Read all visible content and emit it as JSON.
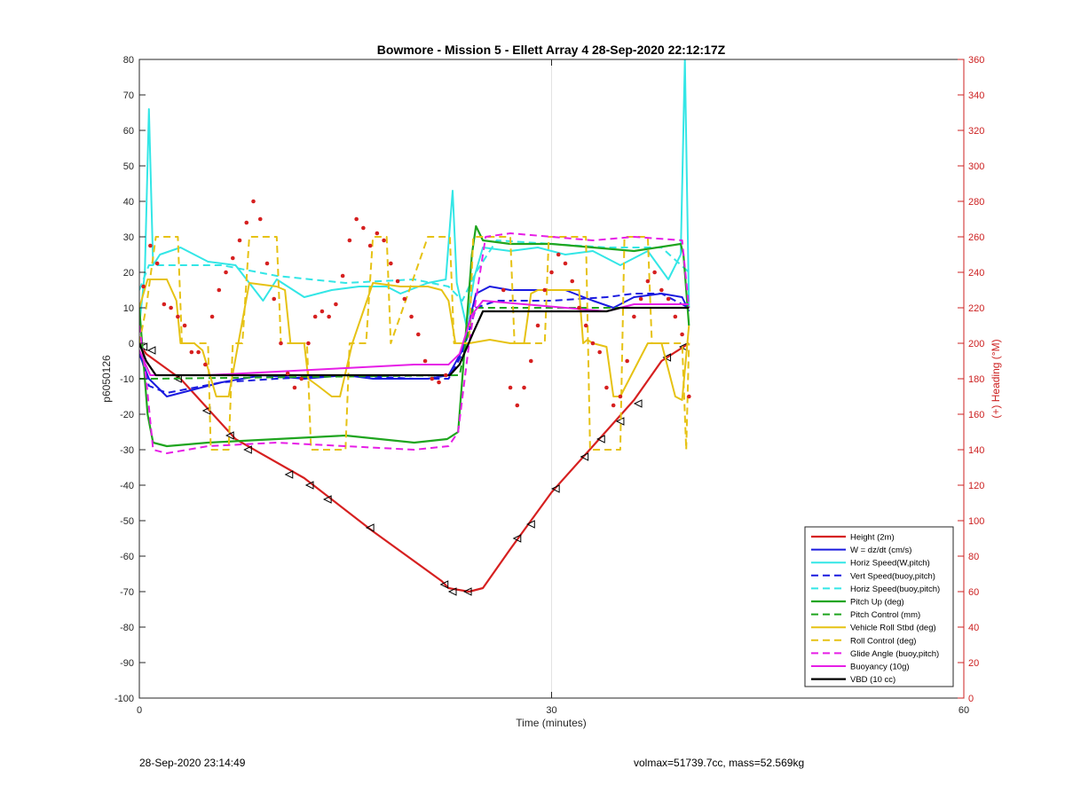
{
  "footer": {
    "timestamp": "28-Sep-2020 23:14:49",
    "vehicle_info": "volmax=51739.7cc, mass=52.569kg"
  },
  "chart_data": {
    "type": "line",
    "title": "Bowmore - Mission 5 - Ellett Array 4 28-Sep-2020 22:12:17Z",
    "xlabel": "Time (minutes)",
    "ylabel": "p6050126",
    "y2label": "(+) Heading (°M)",
    "xlim": [
      0,
      60
    ],
    "ylim": [
      -100,
      80
    ],
    "y2lim": [
      0,
      360
    ],
    "xticks": [
      0,
      30,
      60
    ],
    "yticks": [
      -100,
      -90,
      -80,
      -70,
      -60,
      -50,
      -40,
      -30,
      -20,
      -10,
      0,
      10,
      20,
      30,
      40,
      50,
      60,
      70,
      80
    ],
    "y2ticks": [
      0,
      20,
      40,
      60,
      80,
      100,
      120,
      140,
      160,
      180,
      200,
      220,
      240,
      260,
      280,
      300,
      320,
      340,
      360
    ],
    "grid": "x-only",
    "legend_position": "bottom-right",
    "colors": {
      "red": "#d62020",
      "blue": "#1a1adf",
      "cyan": "#33e6e6",
      "green": "#1fa51f",
      "yellow": "#e6c214",
      "magenta": "#e61ee6",
      "black": "#000000",
      "axis_right": "#cc2020"
    },
    "series": [
      {
        "name": "Height (2m)",
        "color": "#d62020",
        "style": "solid",
        "width": 2.2,
        "x": [
          0,
          0.5,
          3,
          7,
          12,
          17,
          22,
          22.5,
          24,
          25,
          27,
          30,
          33,
          36,
          38,
          40
        ],
        "y": [
          0,
          -3,
          -10,
          -27,
          -38,
          -53,
          -67,
          -69,
          -70,
          -69,
          -58,
          -42,
          -29,
          -16,
          -5,
          0
        ],
        "markers_x": [
          0.3,
          0.9,
          2.8,
          4.9,
          6.6,
          7.9,
          10.9,
          12.4,
          13.7,
          16.8,
          22.2,
          22.8,
          23.9,
          27.5,
          28.5,
          30.3,
          32.4,
          33.6,
          35,
          36.3,
          38.4,
          39.6
        ],
        "markers_y": [
          -1,
          -2,
          -10,
          -19,
          -26,
          -30,
          -37,
          -40,
          -44,
          -52,
          -68,
          -70,
          -70,
          -55,
          -51,
          -41,
          -32,
          -27,
          -22,
          -17,
          -4,
          -1
        ]
      },
      {
        "name": "W = dz/dt (cm/s)",
        "color": "#1a1adf",
        "style": "solid",
        "width": 2,
        "x": [
          0,
          0.7,
          2,
          5,
          6,
          9,
          12,
          15,
          17,
          19,
          21,
          22.5,
          23.5,
          24.5,
          25.5,
          27,
          29,
          31,
          33,
          34.5,
          36,
          38,
          39.5,
          40
        ],
        "y": [
          -3,
          -10,
          -15,
          -12,
          -11,
          -9,
          -10,
          -9,
          -10,
          -10,
          -10,
          -9,
          -2,
          14,
          16,
          15,
          15,
          15,
          12,
          10,
          13,
          14,
          13,
          9
        ]
      },
      {
        "name": "Horiz Speed(W,pitch)",
        "color": "#33e6e6",
        "style": "solid",
        "width": 2,
        "x": [
          0,
          0.4,
          0.7,
          1.0,
          1.5,
          3,
          5,
          7,
          8,
          9,
          10,
          12,
          14,
          16,
          18,
          19,
          21,
          22.3,
          22.8,
          23.1,
          23.8,
          24.4,
          25,
          27,
          29,
          31,
          33,
          35,
          37,
          38.5,
          39.4,
          39.7,
          40
        ],
        "y": [
          5,
          20,
          66,
          22,
          25,
          27,
          23,
          22,
          17,
          12,
          18,
          13,
          15,
          16,
          16,
          14,
          17,
          18,
          43,
          17,
          5,
          19,
          27,
          26,
          27,
          25,
          26,
          22,
          26,
          18,
          25,
          80,
          10
        ]
      },
      {
        "name": "Vert Speed(buoy,pitch)",
        "color": "#1a1adf",
        "style": "dashed",
        "width": 2,
        "x": [
          0,
          0.7,
          2,
          6,
          10,
          15,
          20,
          22.5,
          23.5,
          24.5,
          26,
          30,
          34,
          36,
          38,
          40
        ],
        "y": [
          -2,
          -12,
          -14,
          -11,
          -10,
          -9,
          -10,
          -10,
          -3,
          10,
          12,
          12,
          13,
          14,
          14,
          10
        ]
      },
      {
        "name": "Horiz Speed(buoy,pitch)",
        "color": "#33e6e6",
        "style": "dashed",
        "width": 2,
        "x": [
          0,
          0.7,
          2,
          6,
          10,
          15,
          20,
          22.5,
          23.5,
          24.5,
          26,
          30,
          34,
          38,
          40
        ],
        "y": [
          15,
          22,
          22,
          22,
          19,
          17,
          18,
          16,
          12,
          20,
          29,
          28,
          27,
          27,
          20
        ]
      },
      {
        "name": "Pitch Up (deg)",
        "color": "#1fa51f",
        "style": "solid",
        "width": 2.2,
        "x": [
          0,
          0.6,
          1.0,
          2,
          5,
          10,
          15,
          20,
          22.4,
          23.2,
          23.7,
          24.2,
          24.5,
          25,
          27,
          30,
          33,
          36,
          39.4,
          39.6,
          40
        ],
        "y": [
          10,
          -20,
          -28,
          -29,
          -28,
          -27,
          -26,
          -28,
          -27,
          -25,
          0,
          25,
          33,
          29,
          28,
          28,
          27,
          26,
          28,
          25,
          5
        ]
      },
      {
        "name": "Pitch Control (mm)",
        "color": "#1fa51f",
        "style": "dashed",
        "width": 2,
        "x": [
          0,
          0.8,
          23.3,
          24.3,
          40
        ],
        "y": [
          -10,
          -10,
          -9,
          10,
          10
        ]
      },
      {
        "name": "Vehicle Roll Stbd (deg)",
        "color": "#e6c214",
        "style": "solid",
        "width": 2,
        "x": [
          0,
          0.6,
          2,
          2.7,
          3,
          4,
          4.6,
          5.6,
          6.5,
          8,
          10,
          10.6,
          11,
          12,
          12.3,
          13,
          14,
          14.6,
          15.5,
          17,
          19,
          21,
          22,
          22.5,
          23,
          24,
          25.5,
          27,
          28,
          28.5,
          29,
          32,
          32.3,
          32.6,
          33,
          34,
          34.5,
          35,
          37,
          37.3,
          38,
          39,
          39.5,
          40
        ],
        "y": [
          10,
          18,
          18,
          12,
          0,
          0,
          -2,
          -15,
          -15,
          17,
          16,
          15,
          0,
          0,
          -10,
          -12,
          -15,
          -15,
          0,
          17,
          16,
          16,
          15,
          12,
          0,
          0,
          1,
          0,
          0,
          14,
          15,
          15,
          0,
          1,
          0,
          -1,
          -15,
          -15,
          0,
          0,
          0,
          -15,
          -16,
          5
        ]
      },
      {
        "name": "Roll Control (deg)",
        "color": "#e6c214",
        "style": "dashed",
        "width": 2,
        "x": [
          0,
          0.5,
          1.2,
          2.8,
          3.1,
          5,
          5.2,
          6.5,
          6.8,
          7.5,
          8,
          10,
          10.3,
          12.2,
          12.5,
          15,
          15.3,
          16.5,
          17,
          18,
          18.3,
          21,
          21.3,
          22.6,
          22.9,
          24,
          24.3,
          27,
          27.3,
          29.5,
          29.8,
          32.5,
          32.8,
          35,
          35.3,
          37,
          37.3,
          39.5,
          39.8,
          40
        ],
        "y": [
          0,
          10,
          30,
          30,
          0,
          0,
          -30,
          -30,
          0,
          0,
          30,
          30,
          0,
          0,
          -30,
          -30,
          0,
          0,
          30,
          30,
          0,
          30,
          30,
          30,
          0,
          0,
          30,
          30,
          0,
          0,
          30,
          30,
          -30,
          -30,
          30,
          30,
          0,
          0,
          -30,
          0
        ]
      },
      {
        "name": "Glide Angle (buoy,pitch)",
        "color": "#e61ee6",
        "style": "dashed",
        "width": 2,
        "x": [
          0,
          0.5,
          1.0,
          2,
          5,
          10,
          15,
          20,
          22.5,
          23.2,
          24,
          24.6,
          25.2,
          27,
          30,
          33,
          36,
          39.5,
          40
        ],
        "y": [
          5,
          -10,
          -30,
          -31,
          -29,
          -28,
          -29,
          -30,
          -29,
          -25,
          0,
          15,
          30,
          31,
          30,
          29,
          30,
          29,
          10
        ]
      },
      {
        "name": "Buoyancy (10g)",
        "color": "#e61ee6",
        "style": "solid",
        "width": 2,
        "x": [
          0,
          0.8,
          5,
          10,
          15,
          20,
          22.5,
          23.3,
          24.2,
          25,
          28,
          31,
          34,
          36,
          40
        ],
        "y": [
          -2,
          -9,
          -9,
          -8,
          -7,
          -6,
          -6,
          -3,
          8,
          12,
          11,
          10,
          9,
          11,
          11
        ]
      },
      {
        "name": "VBD (10 cc)",
        "color": "#000000",
        "style": "solid",
        "width": 2.2,
        "x": [
          0,
          0.5,
          1.2,
          22.6,
          23.3,
          24.3,
          25,
          34,
          35,
          40
        ],
        "y": [
          0,
          -5,
          -9,
          -9,
          -6,
          3,
          9,
          9,
          10,
          10
        ]
      },
      {
        "name": "Heading",
        "color": "#d62020",
        "style": "dotted",
        "axis": "right",
        "x": [
          0.3,
          0.8,
          1.3,
          1.8,
          2.3,
          2.8,
          3.3,
          3.8,
          4.3,
          4.8,
          5.3,
          5.8,
          6.3,
          6.8,
          7.3,
          7.8,
          8.3,
          8.8,
          9.3,
          9.8,
          10.3,
          10.8,
          11.3,
          11.8,
          12.3,
          12.8,
          13.3,
          13.8,
          14.3,
          14.8,
          15.3,
          15.8,
          16.3,
          16.8,
          17.3,
          17.8,
          18.3,
          18.8,
          19.3,
          19.8,
          20.3,
          20.8,
          21.3,
          21.8,
          22.3,
          26.5,
          27,
          27.5,
          28,
          28.5,
          29,
          29.5,
          30,
          30.5,
          31,
          31.5,
          32,
          32.5,
          33,
          33.5,
          34,
          34.5,
          35,
          35.5,
          36,
          36.5,
          37,
          37.5,
          38,
          38.5,
          39,
          39.5,
          40
        ],
        "y": [
          232,
          255,
          245,
          222,
          220,
          215,
          210,
          195,
          195,
          188,
          215,
          230,
          240,
          248,
          258,
          268,
          280,
          270,
          245,
          225,
          200,
          183,
          175,
          180,
          200,
          215,
          218,
          215,
          222,
          238,
          258,
          270,
          265,
          255,
          262,
          258,
          245,
          235,
          225,
          215,
          205,
          190,
          180,
          178,
          182,
          230,
          175,
          165,
          175,
          190,
          210,
          230,
          240,
          250,
          245,
          235,
          220,
          210,
          200,
          195,
          175,
          165,
          170,
          190,
          215,
          225,
          235,
          240,
          230,
          225,
          215,
          205,
          170
        ]
      }
    ]
  }
}
